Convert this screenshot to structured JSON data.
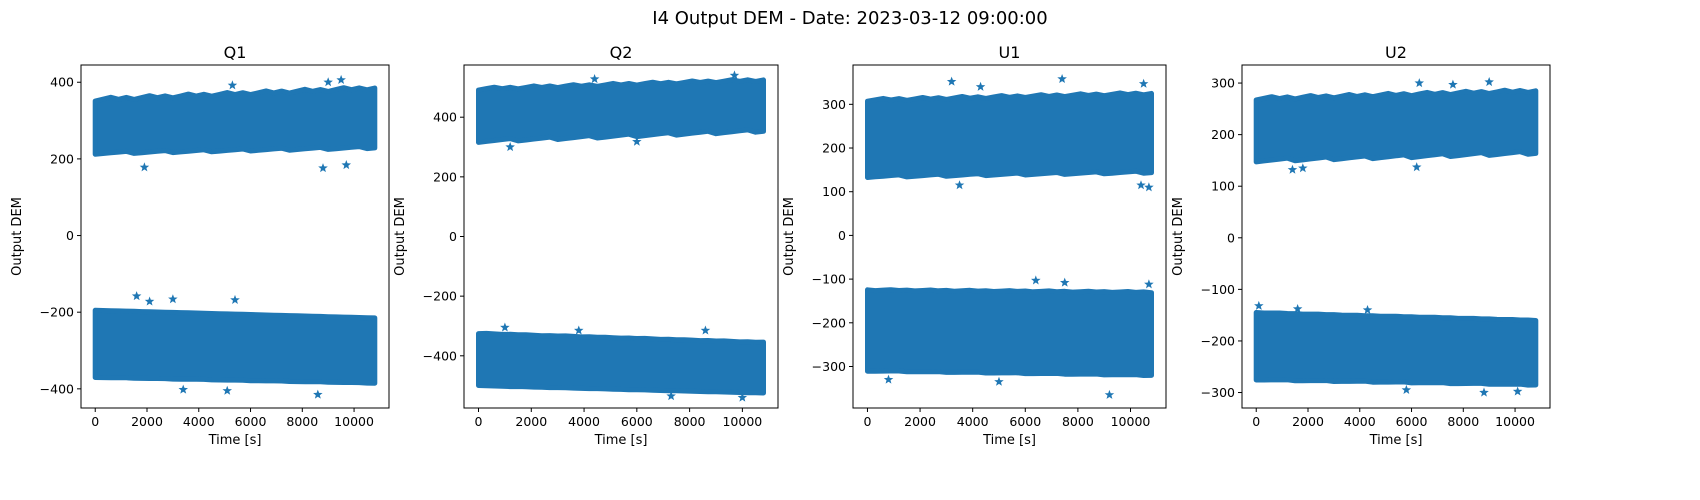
{
  "figure": {
    "suptitle": "I4 Output DEM - Date: 2023-03-12 09:00:00"
  },
  "chart_data": [
    {
      "type": "scatter",
      "title": "Q1",
      "xlabel": "Time [s]",
      "ylabel": "Output DEM",
      "marker": "star",
      "color": "#1f77b4",
      "xlim": [
        -550,
        11350
      ],
      "ylim": [
        -450,
        445
      ],
      "xticks": [
        0,
        2000,
        4000,
        6000,
        8000,
        10000
      ],
      "yticks": [
        -400,
        -200,
        0,
        200,
        400
      ],
      "x_range": [
        0,
        10800
      ],
      "bands": [
        {
          "lower": [
            215,
            230
          ],
          "upper": [
            355,
            385
          ],
          "outliers_low": [
            [
              1900,
              178
            ],
            [
              8800,
              176
            ],
            [
              9700,
              184
            ]
          ],
          "outliers_high": [
            [
              5300,
              392
            ],
            [
              9000,
              400
            ],
            [
              9500,
              406
            ]
          ]
        },
        {
          "lower": [
            -370,
            -385
          ],
          "upper": [
            -195,
            -215
          ],
          "outliers_low": [
            [
              8600,
              -415
            ],
            [
              5100,
              -405
            ],
            [
              3400,
              -402
            ]
          ],
          "outliers_high": [
            [
              1600,
              -158
            ],
            [
              3000,
              -166
            ],
            [
              5400,
              -168
            ],
            [
              2100,
              -172
            ]
          ]
        }
      ]
    },
    {
      "type": "scatter",
      "title": "Q2",
      "xlabel": "Time [s]",
      "ylabel": "Output DEM",
      "marker": "star",
      "color": "#1f77b4",
      "xlim": [
        -550,
        11350
      ],
      "ylim": [
        -575,
        575
      ],
      "xticks": [
        0,
        2000,
        4000,
        6000,
        8000,
        10000
      ],
      "yticks": [
        -400,
        -200,
        0,
        200,
        400
      ],
      "x_range": [
        0,
        10800
      ],
      "bands": [
        {
          "lower": [
            320,
            355
          ],
          "upper": [
            495,
            525
          ],
          "outliers_low": [
            [
              1200,
              300
            ],
            [
              6000,
              318
            ]
          ],
          "outliers_high": [
            [
              4400,
              528
            ],
            [
              9700,
              540
            ]
          ]
        },
        {
          "lower": [
            -500,
            -525
          ],
          "upper": [
            -325,
            -355
          ],
          "outliers_low": [
            [
              10000,
              -540
            ],
            [
              7300,
              -535
            ]
          ],
          "outliers_high": [
            [
              8600,
              -315
            ],
            [
              1000,
              -305
            ],
            [
              3800,
              -315
            ]
          ]
        }
      ]
    },
    {
      "type": "scatter",
      "title": "U1",
      "xlabel": "Time [s]",
      "ylabel": "Output DEM",
      "marker": "star",
      "color": "#1f77b4",
      "xlim": [
        -550,
        11350
      ],
      "ylim": [
        -395,
        390
      ],
      "xticks": [
        0,
        2000,
        4000,
        6000,
        8000,
        10000
      ],
      "yticks": [
        -300,
        -200,
        -100,
        0,
        100,
        200,
        300
      ],
      "x_range": [
        0,
        10800
      ],
      "bands": [
        {
          "lower": [
            135,
            145
          ],
          "upper": [
            310,
            325
          ],
          "outliers_low": [
            [
              10400,
              115
            ],
            [
              10700,
              110
            ],
            [
              3500,
              115
            ]
          ],
          "outliers_high": [
            [
              3200,
              352
            ],
            [
              7400,
              358
            ],
            [
              4300,
              340
            ],
            [
              10500,
              347
            ]
          ]
        },
        {
          "lower": [
            -310,
            -320
          ],
          "upper": [
            -125,
            -130
          ],
          "outliers_low": [
            [
              9200,
              -365
            ],
            [
              800,
              -330
            ],
            [
              5000,
              -335
            ]
          ],
          "outliers_high": [
            [
              6400,
              -103
            ],
            [
              7500,
              -108
            ],
            [
              10700,
              -112
            ]
          ]
        }
      ]
    },
    {
      "type": "scatter",
      "title": "U2",
      "xlabel": "Time [s]",
      "ylabel": "Output DEM",
      "marker": "star",
      "color": "#1f77b4",
      "xlim": [
        -550,
        11350
      ],
      "ylim": [
        -330,
        335
      ],
      "xticks": [
        0,
        2000,
        4000,
        6000,
        8000,
        10000
      ],
      "yticks": [
        -300,
        -200,
        -100,
        0,
        100,
        200,
        300
      ],
      "x_range": [
        0,
        10800
      ],
      "bands": [
        {
          "lower": [
            150,
            165
          ],
          "upper": [
            270,
            285
          ],
          "outliers_low": [
            [
              1400,
              132
            ],
            [
              6200,
              137
            ],
            [
              1800,
              135
            ]
          ],
          "outliers_high": [
            [
              6300,
              300
            ],
            [
              9000,
              302
            ],
            [
              7600,
              297
            ]
          ]
        },
        {
          "lower": [
            -275,
            -285
          ],
          "upper": [
            -145,
            -160
          ],
          "outliers_low": [
            [
              8800,
              -300
            ],
            [
              10100,
              -298
            ],
            [
              5800,
              -295
            ]
          ],
          "outliers_high": [
            [
              100,
              -132
            ],
            [
              1600,
              -138
            ],
            [
              4300,
              -140
            ]
          ]
        }
      ]
    }
  ]
}
